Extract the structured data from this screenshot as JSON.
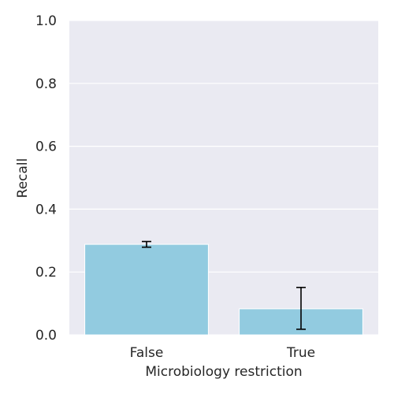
{
  "chart_data": {
    "type": "bar",
    "categories": [
      "False",
      "True"
    ],
    "values": [
      0.288,
      0.083
    ],
    "error_bars": [
      {
        "low": 0.279,
        "high": 0.297
      },
      {
        "low": 0.018,
        "high": 0.151
      }
    ],
    "xlabel": "Microbiology restriction",
    "ylabel": "Recall",
    "ylim": [
      0,
      1.0
    ],
    "yticks": [
      "0.0",
      "0.2",
      "0.4",
      "0.6",
      "0.8",
      "1.0"
    ],
    "ytick_values": [
      0.0,
      0.2,
      0.4,
      0.6,
      0.8,
      1.0
    ],
    "grid": true,
    "colors": {
      "bar": "#92cbe0",
      "background": "#eaeaf2",
      "grid": "#ffffff",
      "error": "#000000"
    }
  }
}
